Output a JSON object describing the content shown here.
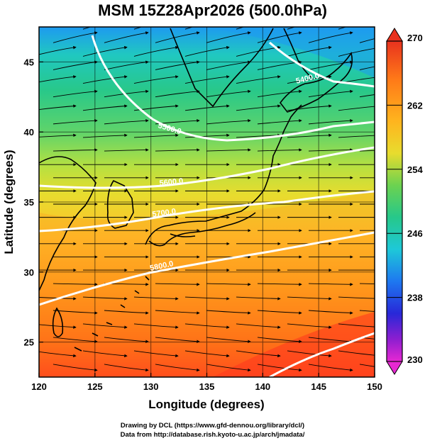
{
  "title": "MSM 15Z28Apr2026 (500.0hPa)",
  "chart_data": {
    "type": "map",
    "xlabel": "Longitude (degrees)",
    "ylabel": "Latitude  (degrees)",
    "xlim": [
      120,
      150
    ],
    "ylim": [
      22.5,
      47.5
    ],
    "xticks": [
      "120",
      "125",
      "130",
      "135",
      "140",
      "145",
      "150"
    ],
    "yticks": [
      "25",
      "30",
      "35",
      "40",
      "45"
    ],
    "shaded_field": "temperature (K)",
    "colorbar": {
      "min": 230,
      "max": 270,
      "labels": [
        "270",
        "262",
        "254",
        "246",
        "238",
        "230"
      ]
    },
    "contours": [
      {
        "label": "5400.0"
      },
      {
        "label": "5500.0"
      },
      {
        "label": "5600.0"
      },
      {
        "label": "5700.0"
      },
      {
        "label": "5800.0"
      }
    ],
    "wind": "streamlines with arrows, westerly flow"
  },
  "credits": {
    "line1": "Drawing by DCL (https://www.gfd-dennou.org/library/dcl/)",
    "line2": "Data from http://database.rish.kyoto-u.ac.jp/arch/jmadata/"
  }
}
